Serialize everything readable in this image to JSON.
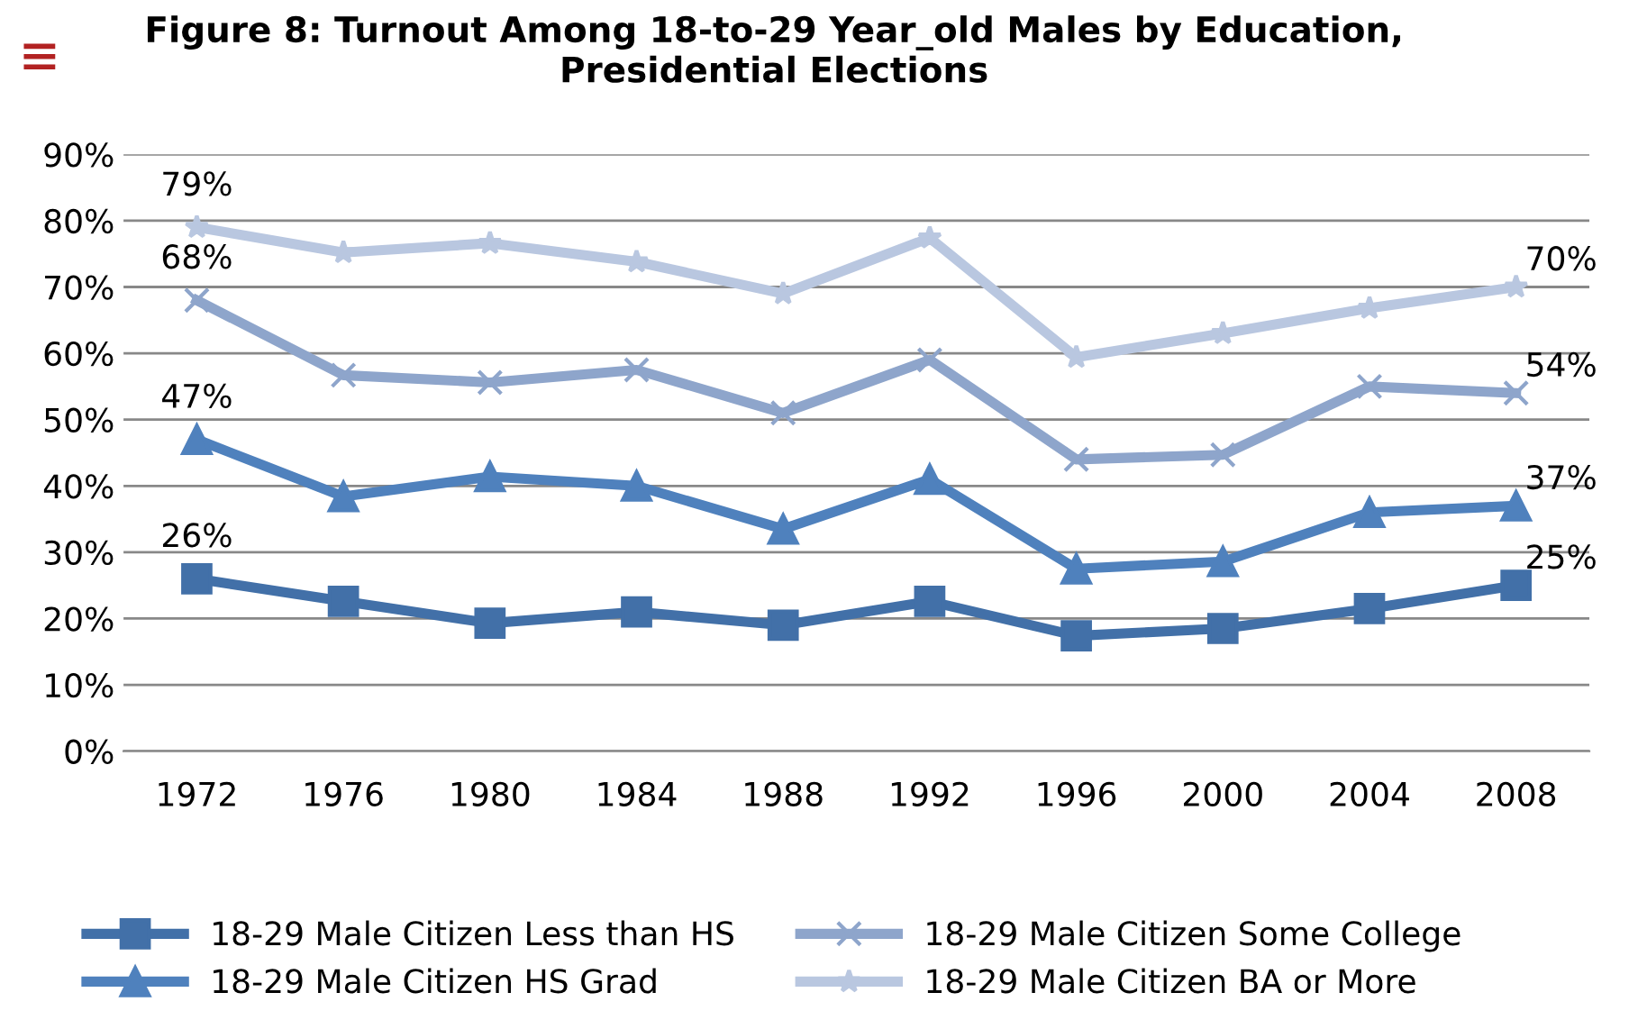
{
  "chart_data": {
    "type": "line",
    "title": "Figure 8: Turnout Among 18-to-29 Year_old Males by Education, Presidential Elections",
    "categories": [
      "1972",
      "1976",
      "1980",
      "1984",
      "1988",
      "1992",
      "1996",
      "2000",
      "2004",
      "2008"
    ],
    "ylim": [
      0,
      90
    ],
    "yticks": [
      {
        "value": 0,
        "label": "0%"
      },
      {
        "value": 10,
        "label": "10%"
      },
      {
        "value": 20,
        "label": "20%"
      },
      {
        "value": 30,
        "label": "30%"
      },
      {
        "value": 40,
        "label": "40%"
      },
      {
        "value": 50,
        "label": "50%"
      },
      {
        "value": 60,
        "label": "60%"
      },
      {
        "value": 70,
        "label": "70%"
      },
      {
        "value": 80,
        "label": "80%"
      },
      {
        "value": 90,
        "label": "90%"
      }
    ],
    "grid": "y",
    "legend": "bottom",
    "series": [
      {
        "name": "18-29 Male Citizen Less than HS",
        "color": "#4270a8",
        "marker": "square",
        "values": [
          26,
          22.6,
          19.3,
          21,
          19,
          22.6,
          17.4,
          18.5,
          21.5,
          25
        ],
        "value_labels": [
          "26%",
          null,
          null,
          null,
          null,
          null,
          null,
          null,
          null,
          "25%"
        ]
      },
      {
        "name": "18-29 Male Citizen HS Grad",
        "color": "#4f81bd",
        "marker": "triangle",
        "values": [
          47,
          38.4,
          41.4,
          40,
          33.5,
          41,
          27.5,
          28.6,
          36,
          37
        ],
        "value_labels": [
          "47%",
          null,
          null,
          null,
          null,
          null,
          null,
          null,
          null,
          "37%"
        ]
      },
      {
        "name": "18-29 Male Citizen Some College",
        "color": "#8ea5cb",
        "marker": "cross",
        "values": [
          68,
          56.7,
          55.6,
          57.5,
          51,
          59,
          44,
          44.7,
          55,
          54
        ],
        "value_labels": [
          "68%",
          null,
          null,
          null,
          null,
          null,
          null,
          null,
          null,
          "54%"
        ]
      },
      {
        "name": "18-29 Male Citizen BA or More",
        "color": "#b9c7e0",
        "marker": "star",
        "values": [
          79,
          75.2,
          76.6,
          73.8,
          69,
          77.4,
          59.4,
          63,
          66.8,
          70
        ],
        "value_labels": [
          "79%",
          null,
          null,
          null,
          null,
          null,
          null,
          null,
          null,
          "70%"
        ]
      }
    ]
  }
}
